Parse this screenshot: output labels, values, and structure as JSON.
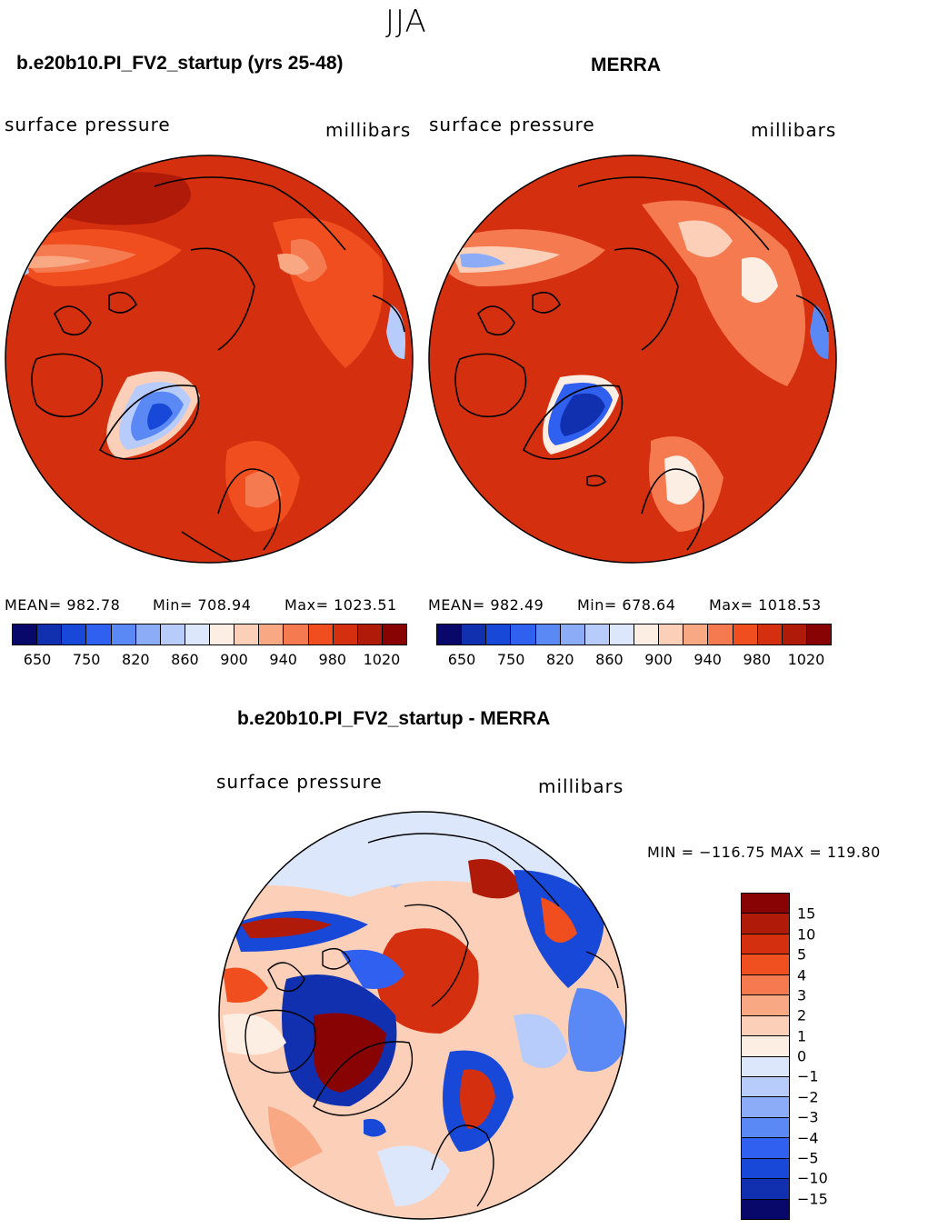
{
  "figure": {
    "season": "JJA",
    "diff_title": "b.e20b10.PI_FV2_startup - MERRA"
  },
  "panels": [
    {
      "title": "b.e20b10.PI_FV2_startup (yrs 25-48)",
      "left_label": "surface pressure",
      "right_label": "millibars",
      "stats": {
        "mean": "MEAN= 982.78",
        "min": "Min= 708.94",
        "max": "Max= 1023.51"
      }
    },
    {
      "title": "MERRA",
      "left_label": "surface pressure",
      "right_label": "millibars",
      "stats": {
        "mean": "MEAN= 982.49",
        "min": "Min= 678.64",
        "max": "Max= 1018.53"
      }
    },
    {
      "title": "b.e20b10.PI_FV2_startup - MERRA",
      "left_label": "surface pressure",
      "right_label": "millibars",
      "stats": {
        "minmax": "MIN = −116.75 MAX = 119.80"
      }
    }
  ],
  "colors": {
    "abs_scale": [
      "#08086b",
      "#1030b0",
      "#1848d8",
      "#3060f0",
      "#5a88f5",
      "#8cacf8",
      "#b8ccfb",
      "#dde7fc",
      "#fdeee4",
      "#fcd0b8",
      "#f9a884",
      "#f67a50",
      "#f04e1e",
      "#d43010",
      "#b01a08",
      "#880404"
    ],
    "diff_scale": [
      "#880404",
      "#b01a08",
      "#d43010",
      "#f05020",
      "#f57a50",
      "#f9a884",
      "#fcd0b8",
      "#fdeee4",
      "#dde7fc",
      "#b8ccfb",
      "#8cacf8",
      "#5a88f5",
      "#3060f0",
      "#1848d8",
      "#1030b0",
      "#08086b"
    ],
    "coast": "#000000"
  },
  "chart_data": [
    {
      "type": "heatmap",
      "title": "b.e20b10.PI_FV2_startup (yrs 25-48)",
      "variable": "surface pressure",
      "units": "millibars",
      "projection": "north polar stereographic",
      "mean": 982.78,
      "min": 708.94,
      "max": 1023.51,
      "colorbar_ticks": [
        "650",
        "750",
        "820",
        "860",
        "900",
        "940",
        "980",
        "1020"
      ]
    },
    {
      "type": "heatmap",
      "title": "MERRA",
      "variable": "surface pressure",
      "units": "millibars",
      "projection": "north polar stereographic",
      "mean": 982.49,
      "min": 678.64,
      "max": 1018.53,
      "colorbar_ticks": [
        "650",
        "750",
        "820",
        "860",
        "900",
        "940",
        "980",
        "1020"
      ]
    },
    {
      "type": "heatmap",
      "title": "b.e20b10.PI_FV2_startup - MERRA",
      "variable": "surface pressure",
      "units": "millibars",
      "projection": "north polar stereographic",
      "min": -116.75,
      "max": 119.8,
      "colorbar_ticks": [
        "15",
        "10",
        "5",
        "4",
        "3",
        "2",
        "1",
        "0",
        "−1",
        "−2",
        "−3",
        "−4",
        "−5",
        "−10",
        "−15"
      ]
    }
  ]
}
